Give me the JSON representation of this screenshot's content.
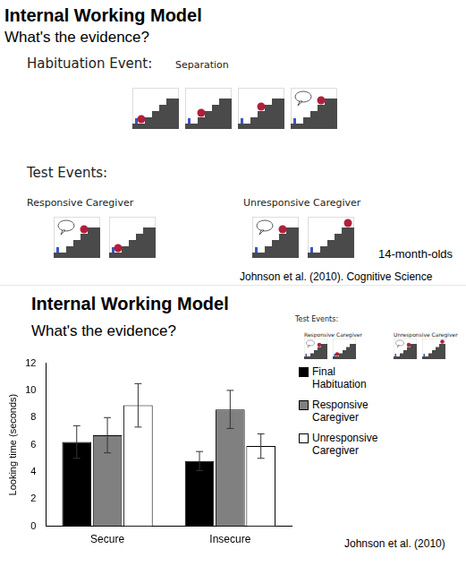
{
  "slide1": {
    "title": "Internal Working Model",
    "subtitle": "What's the evidence?",
    "habituation_label": "Habituation Event:",
    "habituation_event": "Separation",
    "test_label": "Test Events:",
    "test_conditions": [
      "Responsive Caregiver",
      "Unresponsive Caregiver"
    ],
    "age_note": "14-month-olds",
    "citation": "Johnson et al. (2010). Cognitive Science"
  },
  "slide2": {
    "title": "Internal Working Model",
    "subtitle": "What's the evidence?",
    "inset": {
      "test_label": "Test Events:",
      "test_conditions": [
        "Responsive Caregiver",
        "Unresponsive Caregiver"
      ]
    },
    "citation": "Johnson et al. (2010)"
  },
  "chart_data": {
    "type": "bar",
    "y_label": "Looking time (seconds)",
    "categories": [
      "Secure",
      "Insecure"
    ],
    "series": [
      {
        "name": "Final Habituation",
        "color": "#000000",
        "values": [
          6.2,
          4.8
        ],
        "errors": [
          1.2,
          0.7
        ]
      },
      {
        "name": "Responsive Caregiver",
        "color": "#808080",
        "values": [
          6.7,
          8.6
        ],
        "errors": [
          1.3,
          1.4
        ]
      },
      {
        "name": "Unresponsive Caregiver",
        "color": "#ffffff",
        "values": [
          8.9,
          5.9
        ],
        "errors": [
          1.6,
          0.9
        ]
      }
    ],
    "ylim": [
      0,
      12
    ],
    "yticks": [
      0,
      2,
      4,
      6,
      8,
      10,
      12
    ],
    "grid": false,
    "legend": "right"
  }
}
